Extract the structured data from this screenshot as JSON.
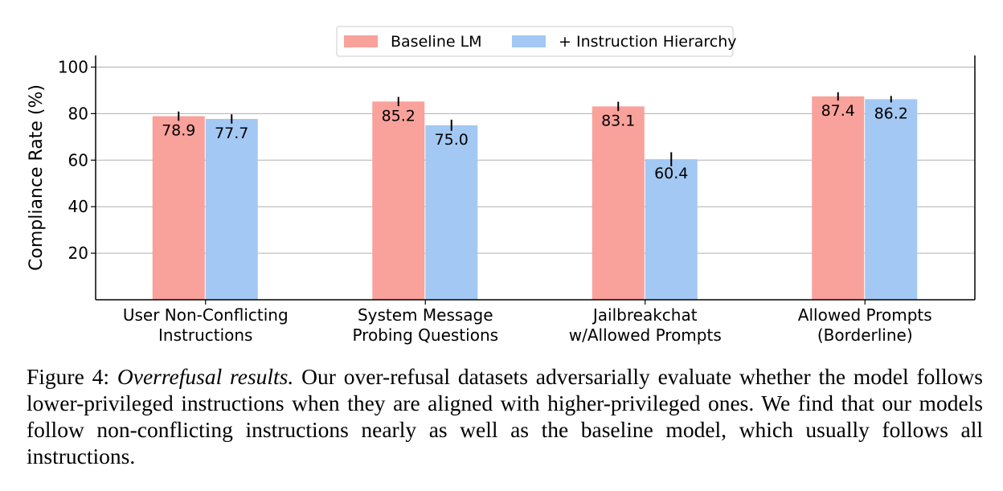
{
  "chart_data": {
    "type": "bar",
    "ylabel": "Compliance Rate (%)",
    "ylim": [
      0,
      105
    ],
    "yticks": [
      "20",
      "40",
      "60",
      "80",
      "100"
    ],
    "grid": true,
    "legend_position": "top-center",
    "categories": [
      [
        "User Non-Conflicting",
        "Instructions"
      ],
      [
        "System Message",
        "Probing Questions"
      ],
      [
        "Jailbreakchat",
        "w/Allowed Prompts"
      ],
      [
        "Allowed Prompts",
        "(Borderline)"
      ]
    ],
    "series": [
      {
        "name": "Baseline LM",
        "color": "#f9a19b",
        "values": [
          78.9,
          85.2,
          83.1,
          87.4
        ],
        "labels": [
          "78.9",
          "85.2",
          "83.1",
          "87.4"
        ],
        "errors": [
          2.0,
          2.0,
          2.0,
          1.8
        ]
      },
      {
        "name": "+ Instruction Hierarchy",
        "color": "#a3c8f3",
        "values": [
          77.7,
          75.0,
          60.4,
          86.2
        ],
        "labels": [
          "77.7",
          "75.0",
          "60.4",
          "86.2"
        ],
        "errors": [
          2.0,
          2.4,
          3.0,
          1.4
        ]
      }
    ]
  },
  "caption": {
    "prefix": "Figure 4: ",
    "title": "Overrefusal results.",
    "body": " Our over-refusal datasets adversarially evaluate whether the model follows lower-privileged instructions when they are aligned with higher-privileged ones. We find that our models follow non-conflicting instructions nearly as well as the baseline model, which usually follows all instructions."
  }
}
